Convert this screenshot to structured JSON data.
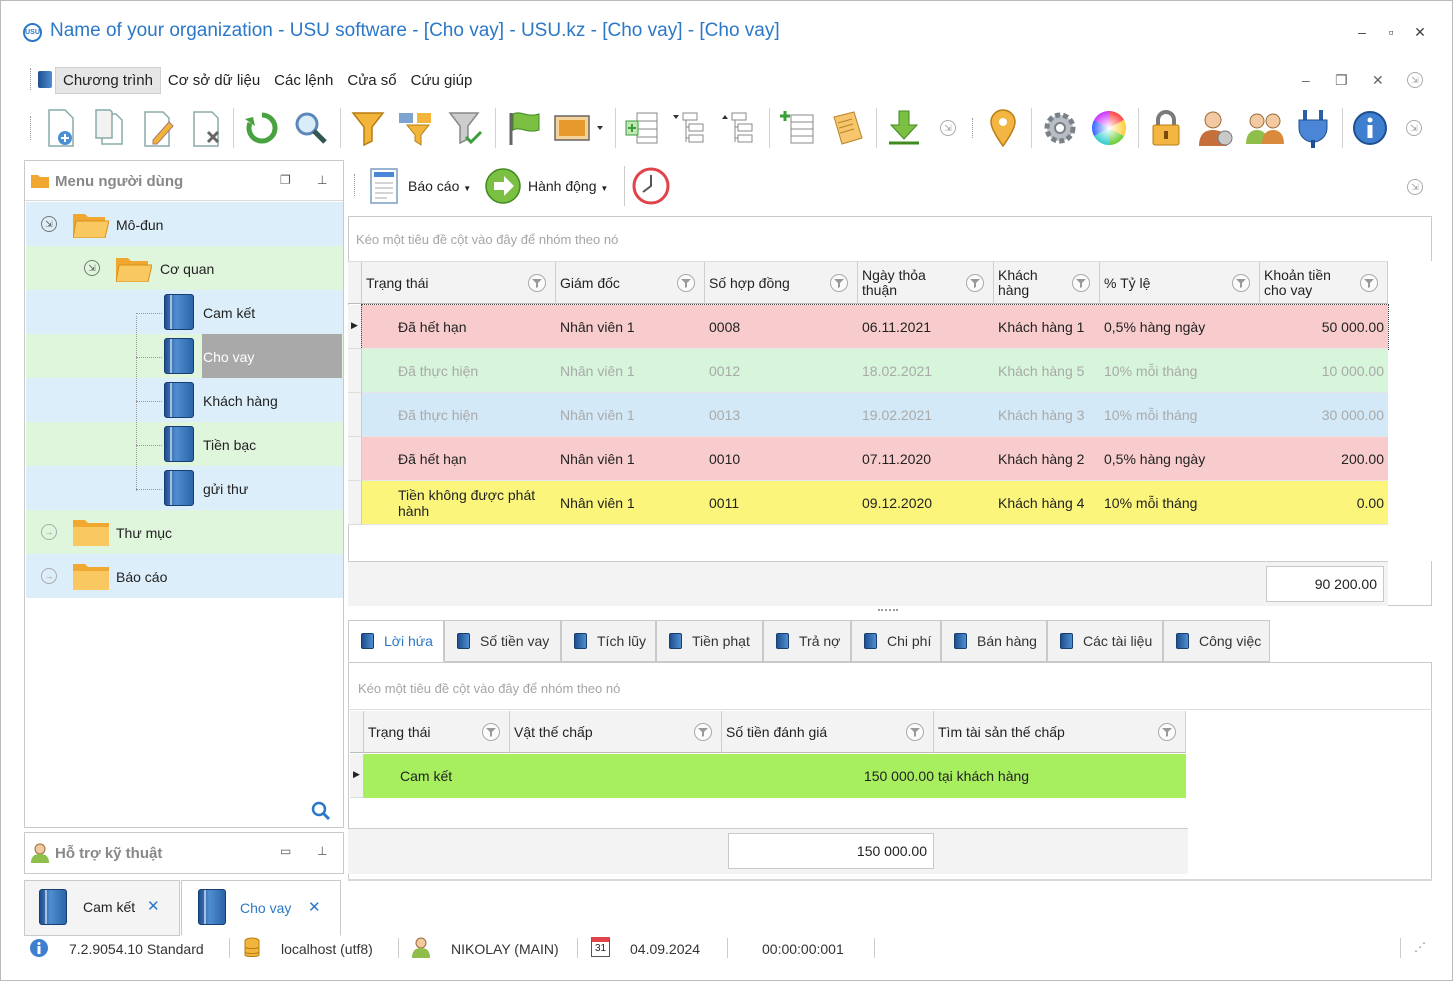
{
  "window": {
    "title": "Name of your organization - USU software - [Cho vay] - USU.kz - [Cho vay] - [Cho vay]",
    "logo_text": "USU",
    "accent": "#2b78c8"
  },
  "menu": {
    "items": [
      "Chương trình",
      "Cơ sở dữ liệu",
      "Các lệnh",
      "Cửa sổ",
      "Cứu giúp"
    ]
  },
  "toolbar": {
    "icons": [
      "new-record-icon",
      "copy-record-icon",
      "edit-record-icon",
      "delete-record-icon",
      "refresh-icon",
      "search-icon",
      "filter-icon",
      "filter-settings-icon",
      "clear-filter-icon",
      "flag-icon",
      "image-icon",
      "add-column-icon",
      "tree-expand-icon",
      "tree-collapse-icon",
      "add-row-icon",
      "notes-icon",
      "download-icon",
      "location-pin-icon",
      "settings-gear-icon",
      "color-wheel-icon",
      "lock-icon",
      "user-icon",
      "users-group-icon",
      "plug-icon",
      "info-icon"
    ]
  },
  "left_panel": {
    "title": "Menu người dùng",
    "tree": {
      "modules": "Mô-đun",
      "agency": "Cơ quan",
      "items": [
        "Cam kết",
        "Cho vay",
        "Khách hàng",
        "Tiền bạc",
        "gửi thư"
      ],
      "directory": "Thư mục",
      "reports": "Báo cáo"
    }
  },
  "support_panel": {
    "title": "Hỗ trợ kỹ thuật"
  },
  "doc_tabs": [
    "Cam kết",
    "Cho vay"
  ],
  "main_toolbar": {
    "reports_label": "Báo cáo",
    "actions_label": "Hành động"
  },
  "grid": {
    "group_hint": "Kéo một tiêu đề cột vào đây để nhóm theo nó",
    "columns": [
      "Trạng thái",
      "Giám đốc",
      "Số hợp đồng",
      "Ngày thỏa thuận",
      "Khách hàng",
      "% Tỷ lệ",
      "Khoản tiền cho vay"
    ],
    "column_lines": [
      [
        "Trạng thái"
      ],
      [
        "Giám đốc"
      ],
      [
        "Số hợp đồng"
      ],
      [
        "Ngày thỏa",
        "thuận"
      ],
      [
        "Khách",
        "hàng"
      ],
      [
        "% Tỷ lệ"
      ],
      [
        "Khoản tiền",
        "cho vay"
      ]
    ],
    "rows": [
      {
        "status": "Đã hết hạn",
        "director": "Nhân viên 1",
        "contract": "0008",
        "date": "06.11.2021",
        "client": "Khách hàng 1",
        "rate": "0,5% hàng ngày",
        "amount": "50 000.00",
        "bg": "#f8cccc",
        "dim": false
      },
      {
        "status": "Đã thực hiện",
        "director": "Nhân viên 1",
        "contract": "0012",
        "date": "18.02.2021",
        "client": "Khách hàng 5",
        "rate": "10% mỗi tháng",
        "amount": "10 000.00",
        "bg": "#d6f5da",
        "dim": true
      },
      {
        "status": "Đã thực hiện",
        "director": "Nhân viên 1",
        "contract": "0013",
        "date": "19.02.2021",
        "client": "Khách hàng 3",
        "rate": "10% mỗi tháng",
        "amount": "30 000.00",
        "bg": "#d3e9f7",
        "dim": true
      },
      {
        "status": "Đã hết hạn",
        "director": "Nhân viên 1",
        "contract": "0010",
        "date": "07.11.2020",
        "client": "Khách hàng 2",
        "rate": "0,5% hàng ngày",
        "amount": "200.00",
        "bg": "#f8cccc",
        "dim": false
      },
      {
        "status": "Tiền không được phát hành",
        "director": "Nhân viên 1",
        "contract": "0011",
        "date": "09.12.2020",
        "client": "Khách hàng 4",
        "rate": "10% mỗi tháng",
        "amount": "0.00",
        "bg": "#fbf67b",
        "dim": false
      }
    ],
    "status_lines": [
      [
        "Đã hết hạn"
      ],
      [
        "Đã thực hiện"
      ],
      [
        "Đã thực hiện"
      ],
      [
        "Đã hết hạn"
      ],
      [
        "Tiền không được phát",
        "hành"
      ]
    ],
    "total": "90 200.00"
  },
  "detail_tabs": [
    "Lời hứa",
    "Số tiền vay",
    "Tích lũy",
    "Tiền phạt",
    "Trả nợ",
    "Chi phí",
    "Bán hàng",
    "Các tài liệu",
    "Công việc"
  ],
  "detail_grid": {
    "group_hint": "Kéo một tiêu đề cột vào đây để nhóm theo nó",
    "columns": [
      "Trạng thái",
      "Vật thế chấp",
      "Số tiền đánh giá",
      "Tìm tài sản thế chấp"
    ],
    "rows": [
      {
        "status": "Cam kết",
        "collateral": "",
        "value": "150 000.00",
        "location": "tại khách hàng",
        "bg": "#a8ef5f"
      }
    ],
    "total": "150 000.00"
  },
  "status_bar": {
    "version": "7.2.9054.10 Standard",
    "server": "localhost (utf8)",
    "user": "NIKOLAY (MAIN)",
    "calendar_day": "31",
    "date": "04.09.2024",
    "timer": "00:00:00:001"
  }
}
